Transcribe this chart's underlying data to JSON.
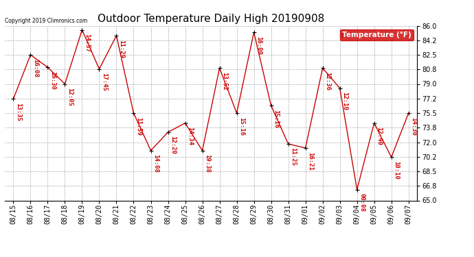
{
  "title": "Outdoor Temperature Daily High 20190908",
  "legend_label": "Temperature (°F)",
  "copyright": "Copyright 2019 Climronics.com",
  "dates": [
    "08/15",
    "08/16",
    "08/17",
    "08/18",
    "08/19",
    "08/20",
    "08/21",
    "08/22",
    "08/23",
    "08/24",
    "08/25",
    "08/26",
    "08/27",
    "08/28",
    "08/29",
    "08/30",
    "08/31",
    "09/01",
    "09/02",
    "09/03",
    "09/04",
    "09/05",
    "09/06",
    "09/07"
  ],
  "temps": [
    77.2,
    82.5,
    81.0,
    79.0,
    85.5,
    80.8,
    84.8,
    75.5,
    71.0,
    73.2,
    74.3,
    71.0,
    80.9,
    75.5,
    85.2,
    76.4,
    71.8,
    71.3,
    80.9,
    78.5,
    66.3,
    74.3,
    70.2,
    75.5
  ],
  "times": [
    "13:35",
    "16:08",
    "16:30",
    "12:05",
    "14:57",
    "17:45",
    "11:29",
    "11:59",
    "14:08",
    "12:20",
    "14:34",
    "19:38",
    "13:52",
    "15:16",
    "16:00",
    "15:16",
    "11:25",
    "16:21",
    "12:36",
    "12:10",
    "00:08",
    "12:40",
    "10:10",
    "14:30"
  ],
  "ylim": [
    65.0,
    86.0
  ],
  "yticks": [
    65.0,
    66.8,
    68.5,
    70.2,
    72.0,
    73.8,
    75.5,
    77.2,
    79.0,
    80.8,
    82.5,
    84.2,
    86.0
  ],
  "line_color": "#cc0000",
  "marker_color": "#000000",
  "bg_color": "#ffffff",
  "grid_color": "#aaaaaa",
  "title_fontsize": 11,
  "tick_fontsize": 7,
  "annotation_fontsize": 6.5,
  "legend_bg": "#cc0000",
  "legend_text_color": "#ffffff",
  "legend_fontsize": 7.5
}
